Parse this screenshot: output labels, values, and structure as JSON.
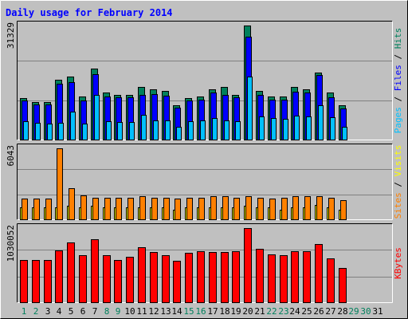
{
  "chart_data": {
    "type": "bar",
    "title": "Daily usage for February 2014",
    "days": [
      "1",
      "2",
      "3",
      "4",
      "5",
      "6",
      "7",
      "8",
      "9",
      "10",
      "11",
      "12",
      "13",
      "14",
      "15",
      "16",
      "17",
      "18",
      "19",
      "20",
      "21",
      "22",
      "23",
      "24",
      "25",
      "26",
      "27",
      "28",
      "29",
      "30",
      "31"
    ],
    "weekend_days": [
      "1",
      "2",
      "8",
      "9",
      "15",
      "16",
      "22",
      "23",
      "29",
      "30"
    ],
    "panels": [
      {
        "id": "hits-panel",
        "ymax": 31329,
        "ymax_label": "31329",
        "label_parts": [
          {
            "text": "Pages",
            "color": "#00c0ff"
          },
          {
            "text": " / ",
            "color": "#000000"
          },
          {
            "text": "Files",
            "color": "#0000ff"
          },
          {
            "text": " / ",
            "color": "#000000"
          },
          {
            "text": "Hits",
            "color": "#00805c"
          }
        ],
        "series": [
          {
            "key": "hits",
            "color": "#00805c",
            "values": [
              11500,
              10500,
              10500,
              16500,
              17500,
              12000,
              19500,
              13000,
              12500,
              12500,
              14500,
              14000,
              13500,
              9500,
              11500,
              12000,
              14000,
              14500,
              12500,
              31300,
              13500,
              12000,
              12000,
              14500,
              14000,
              18500,
              13000,
              9500
            ]
          },
          {
            "key": "files",
            "color": "#0000ff",
            "values": [
              10800,
              9800,
              9800,
              15500,
              15800,
              10800,
              18000,
              12000,
              11700,
              11800,
              12500,
              12600,
              12200,
              8900,
              10800,
              11000,
              13000,
              12500,
              11800,
              28300,
              12500,
              11200,
              11000,
              13300,
              13000,
              17800,
              11800,
              8800
            ]
          },
          {
            "key": "pages",
            "color": "#00c0ff",
            "values": [
              5200,
              4800,
              4500,
              4800,
              7800,
              4600,
              12300,
              5300,
              5000,
              5000,
              6900,
              5500,
              5400,
              3700,
              5200,
              5500,
              6000,
              5500,
              5300,
              17500,
              6500,
              6000,
              5800,
              6800,
              6500,
              9600,
              6300,
              3800
            ]
          }
        ]
      },
      {
        "id": "visits-panel",
        "ymax": 6043,
        "ymax_label": "6043",
        "label_parts": [
          {
            "text": "Sites",
            "color": "#ff8000"
          },
          {
            "text": " / ",
            "color": "#000000"
          },
          {
            "text": "Visits",
            "color": "#ffff00"
          }
        ],
        "series": [
          {
            "key": "visits",
            "color": "#ffff00",
            "values": [
              1100,
              1100,
              1100,
              1100,
              1200,
              1100,
              1200,
              1100,
              1100,
              1100,
              1100,
              1100,
              1100,
              900,
              1100,
              1100,
              1100,
              1100,
              1100,
              1200,
              1100,
              1100,
              900,
              1100,
              1100,
              1300,
              1100,
              900
            ]
          },
          {
            "key": "sites",
            "color": "#ff8000",
            "values": [
              1800,
              1800,
              1800,
              6043,
              2700,
              2100,
              1900,
              1900,
              1900,
              1900,
              2000,
              1900,
              1900,
              1800,
              1900,
              1900,
              2000,
              2000,
              1900,
              2000,
              1900,
              1800,
              1900,
              2000,
              2000,
              2000,
              1900,
              1700
            ]
          }
        ]
      },
      {
        "id": "kbytes-panel",
        "ymax": 1030052,
        "ymax_label": "1030052",
        "label_parts": [
          {
            "text": "KBytes",
            "color": "#ff0000"
          }
        ],
        "series": [
          {
            "key": "kbytes",
            "color": "#ff0000",
            "values": [
              590000,
              590000,
              590000,
              720000,
              830000,
              660000,
              880000,
              660000,
              590000,
              640000,
              770000,
              700000,
              660000,
              580000,
              690000,
              710000,
              700000,
              700000,
              710000,
              1030052,
              750000,
              670000,
              660000,
              710000,
              710000,
              810000,
              610000,
              480000
            ]
          }
        ]
      }
    ]
  }
}
